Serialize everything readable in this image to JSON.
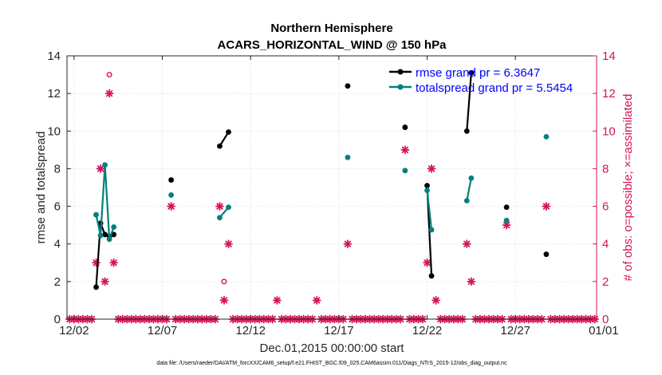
{
  "chart_data": {
    "type": "line",
    "title": [
      "Northern Hemisphere",
      "ACARS_HORIZONTAL_WIND @ 150 hPa"
    ],
    "xlabel": "Dec.01,2015 00:00:00 start",
    "ylabel": "rmse and totalspread",
    "y2label": "# of obs: o=possible; ×=assimilated",
    "footnote": "data file: /Users/raeder/DAI/ATM_forcXX/CAM6_setup/f.e21.FHIST_BGC.f09_025.CAM6assim.011/Diags_NTrS_2015-12/obs_diag_output.nc",
    "xlim": [
      1.6,
      31.6
    ],
    "ylim": [
      0,
      14
    ],
    "y2lim": [
      0,
      14
    ],
    "xticks": [
      {
        "x": 2,
        "label": "12/02"
      },
      {
        "x": 7,
        "label": "12/07"
      },
      {
        "x": 12,
        "label": "12/12"
      },
      {
        "x": 17,
        "label": "12/17"
      },
      {
        "x": 22,
        "label": "12/22"
      },
      {
        "x": 27,
        "label": "12/27"
      },
      {
        "x": 32,
        "label": "01/01"
      }
    ],
    "yticks": [
      0,
      2,
      4,
      6,
      8,
      10,
      12,
      14
    ],
    "y2ticks": [
      0,
      2,
      4,
      6,
      8,
      10,
      12,
      14
    ],
    "grid": true,
    "legend_position": "top-right",
    "colors": {
      "rmse": "#000000",
      "spread": "#00807f",
      "obs": "#d4145a",
      "axis": "#262626"
    },
    "legend": [
      {
        "name": "rmse grand pr = 6.3647",
        "color": "#000000"
      },
      {
        "name": "totalspread grand pr = 5.5454",
        "color": "#00807f"
      }
    ],
    "series": [
      {
        "name": "rmse",
        "color": "#000000",
        "segments": [
          [
            [
              3.25,
              1.7
            ],
            [
              3.5,
              5.1
            ],
            [
              3.75,
              4.5
            ],
            [
              4.0,
              4.4
            ],
            [
              4.25,
              4.5
            ]
          ],
          [
            [
              7.5,
              7.4
            ]
          ],
          [
            [
              10.25,
              9.2
            ],
            [
              10.75,
              9.95
            ]
          ],
          [
            [
              17.5,
              12.4
            ]
          ],
          [
            [
              20.75,
              10.2
            ]
          ],
          [
            [
              22.0,
              7.1
            ],
            [
              22.25,
              2.3
            ]
          ],
          [
            [
              24.25,
              10.0
            ],
            [
              24.5,
              13.1
            ]
          ],
          [
            [
              26.5,
              5.95
            ]
          ],
          [
            [
              28.75,
              3.45
            ]
          ]
        ]
      },
      {
        "name": "totalspread",
        "color": "#00807f",
        "segments": [
          [
            [
              3.25,
              5.55
            ],
            [
              3.5,
              4.45
            ],
            [
              3.75,
              8.2
            ],
            [
              4.0,
              4.25
            ],
            [
              4.25,
              4.9
            ]
          ],
          [
            [
              7.5,
              6.6
            ]
          ],
          [
            [
              10.25,
              5.4
            ],
            [
              10.75,
              5.95
            ]
          ],
          [
            [
              17.5,
              8.6
            ]
          ],
          [
            [
              20.75,
              7.9
            ]
          ],
          [
            [
              22.0,
              6.85
            ],
            [
              22.25,
              4.75
            ]
          ],
          [
            [
              24.25,
              6.3
            ],
            [
              24.5,
              7.5
            ]
          ],
          [
            [
              26.5,
              5.25
            ]
          ],
          [
            [
              28.75,
              9.7
            ]
          ]
        ]
      }
    ],
    "obs_possible": [
      [
        4.0,
        13.0
      ],
      [
        10.5,
        2.0
      ]
    ],
    "obs_assimilated": [
      [
        3.25,
        3.0
      ],
      [
        3.5,
        8.0
      ],
      [
        3.75,
        2.0
      ],
      [
        4.0,
        12.0
      ],
      [
        4.25,
        3.0
      ],
      [
        7.5,
        6.0
      ],
      [
        10.25,
        6.0
      ],
      [
        10.5,
        1.0
      ],
      [
        10.75,
        4.0
      ],
      [
        13.5,
        1.0
      ],
      [
        15.75,
        1.0
      ],
      [
        17.5,
        4.0
      ],
      [
        20.75,
        9.0
      ],
      [
        22.0,
        3.0
      ],
      [
        22.25,
        8.0
      ],
      [
        22.5,
        1.0
      ],
      [
        24.25,
        4.0
      ],
      [
        24.5,
        2.0
      ],
      [
        26.5,
        5.0
      ],
      [
        28.75,
        6.0
      ]
    ],
    "obs_zero_start": 1.75,
    "obs_zero_step": 0.25,
    "obs_zero_end": 31.5
  }
}
